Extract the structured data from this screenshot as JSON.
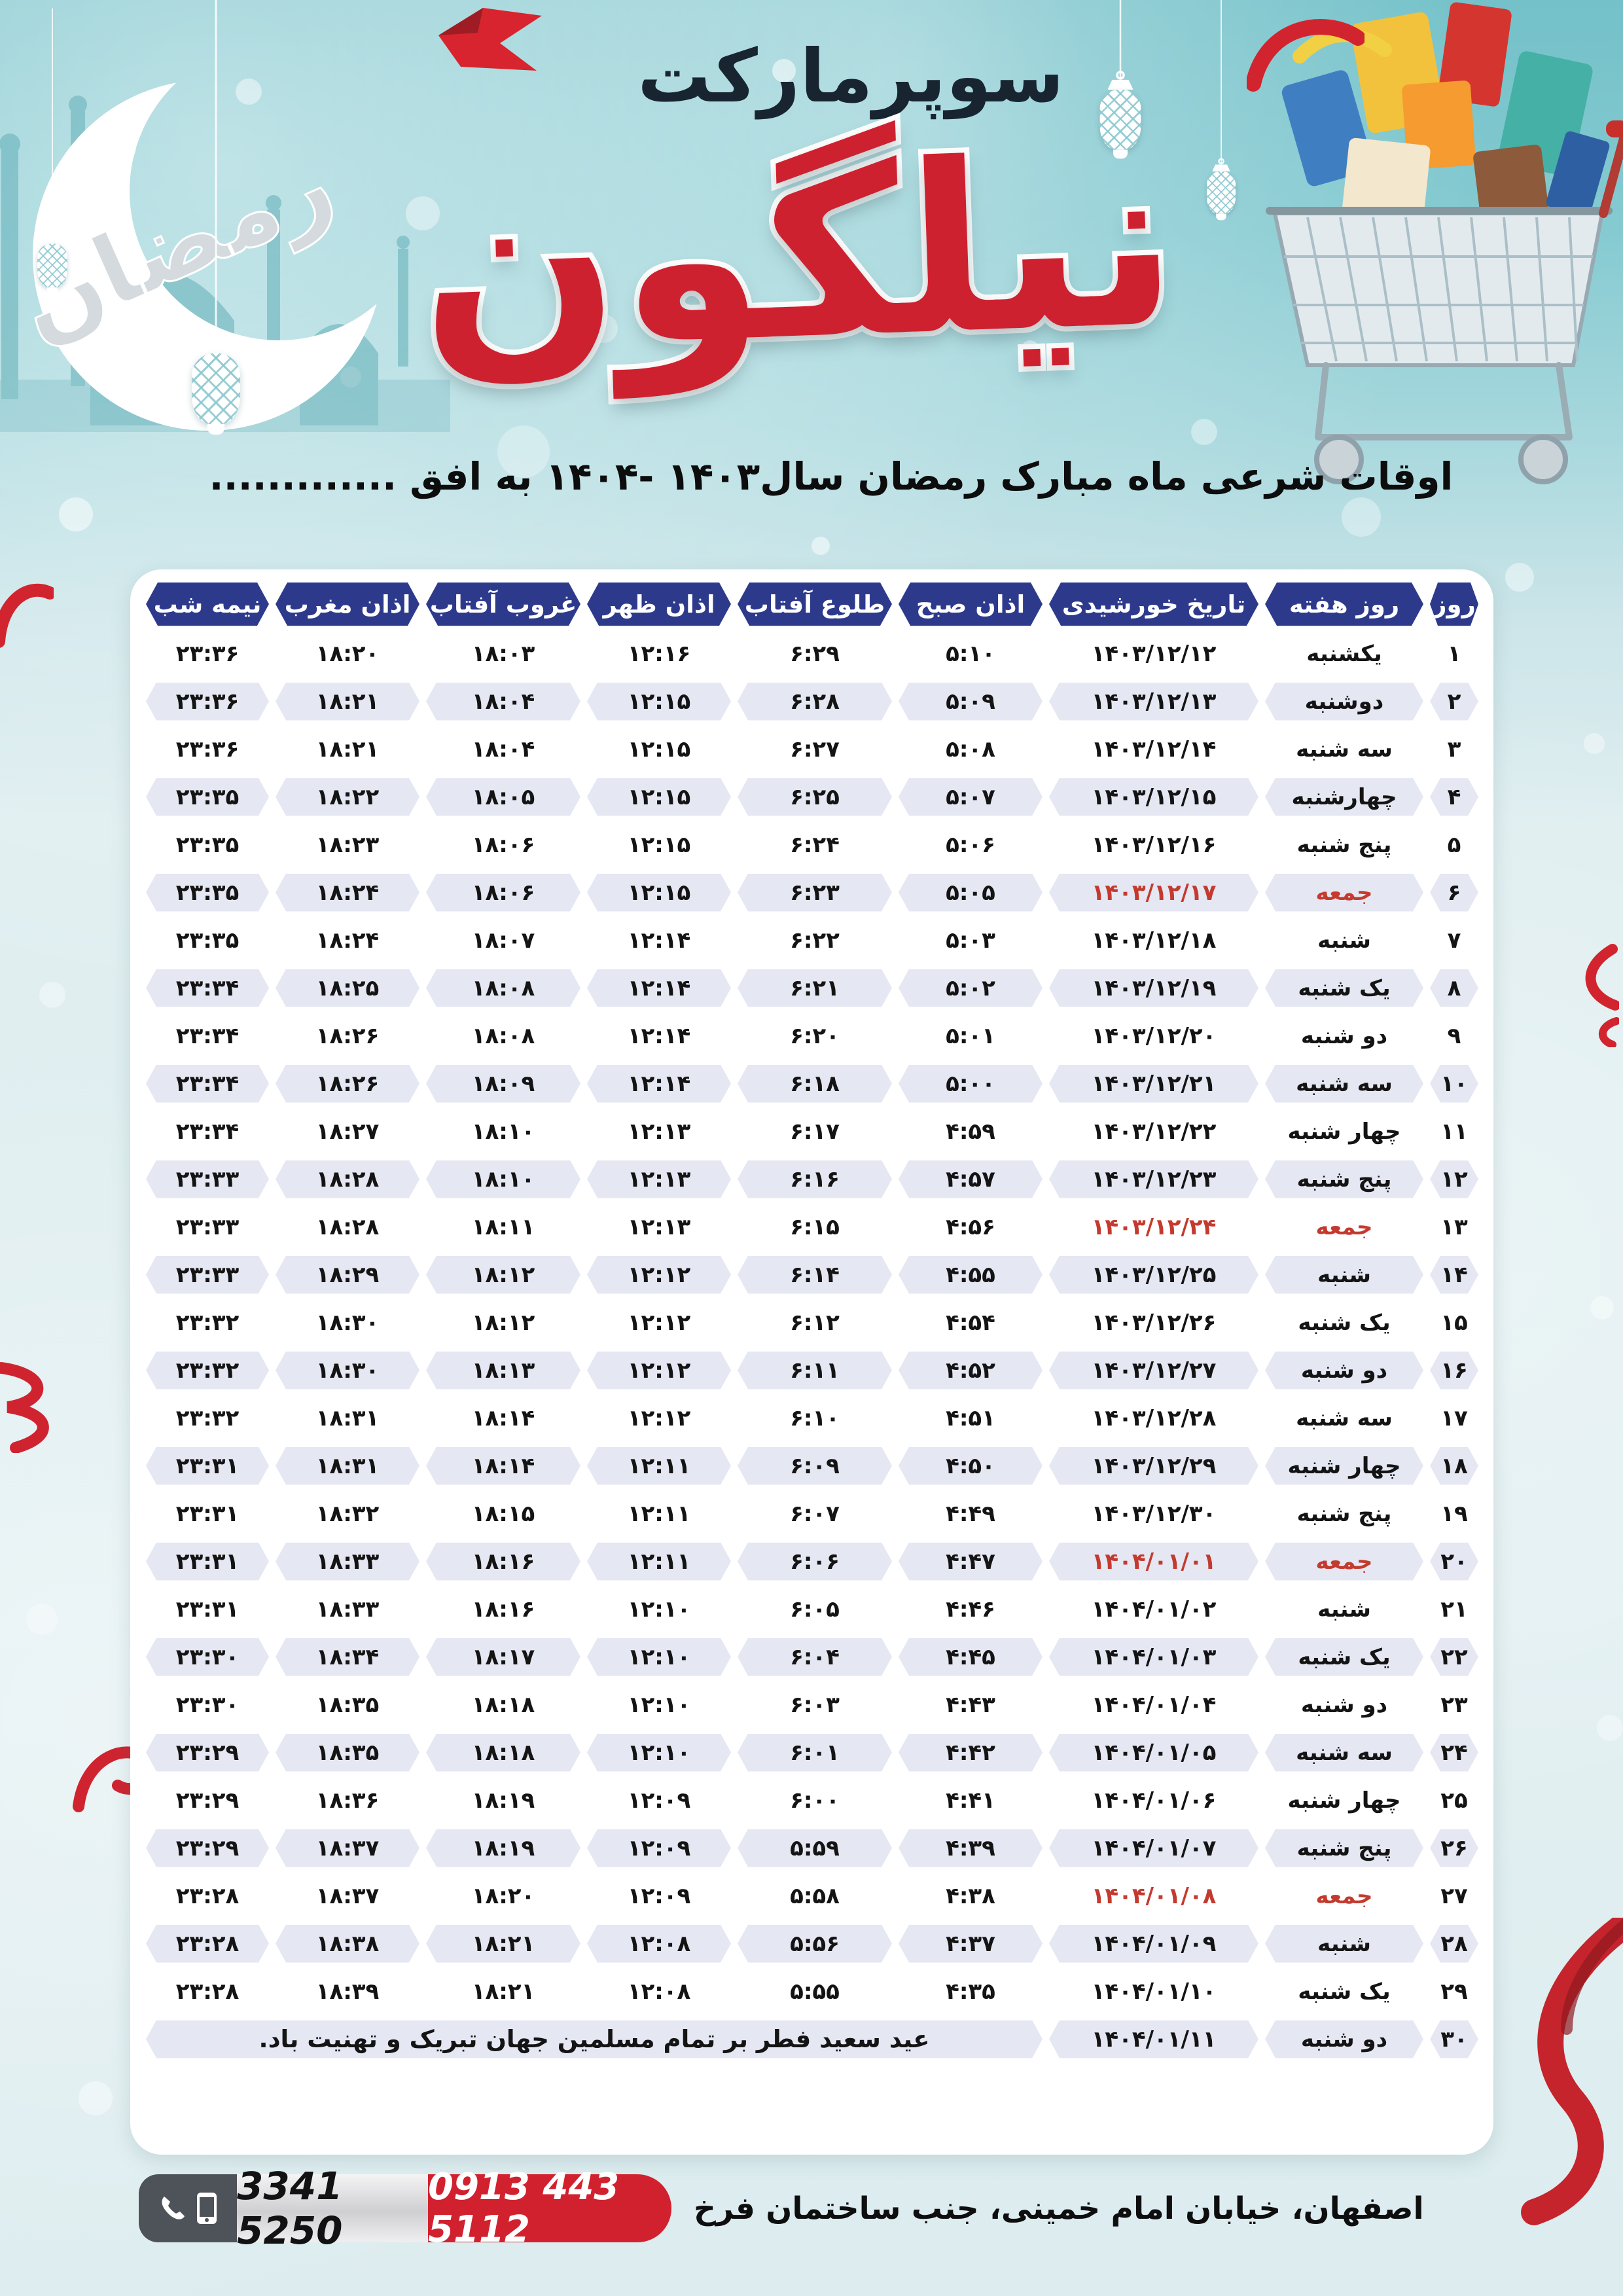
{
  "poster": {
    "supermarket_label": "سوپرمارکت",
    "brand": "نیلگون",
    "crescent_word": "رمضان",
    "subtitle": "اوقات شرعی ماه مبارک رمضان سال۱۴۰۳ -۱۴۰۴ به افق .............",
    "footer": {
      "address": "اصفهان، خیابان امام خمینی، جنب ساختمان فرخ",
      "mobile_number": "0913 443 5112",
      "phone_number": "3341 5250"
    },
    "colors": {
      "header_blue": "#2d3a8c",
      "holiday_red": "#c43a2e",
      "brand_red": "#ce2130",
      "row_shade": "#e5e7f3",
      "top_teal": "#74c1c9"
    }
  },
  "table": {
    "headers": [
      "روز",
      "روز هفته",
      "تاریخ خورشیدی",
      "اذان صبح",
      "طلوع آفتاب",
      "اذان ظهر",
      "غروب آفتاب",
      "اذان مغرب",
      "نیمه شب"
    ],
    "eid_message": "عید سعید فطر بر تمام مسلمین جهان تبریک و تهنیت باد.",
    "rows": [
      {
        "day": "۱",
        "weekday": "یکشنبه",
        "date": "۱۴۰۳/۱۲/۱۲",
        "sobh": "۵:۱۰",
        "tolu": "۶:۲۹",
        "zohr": "۱۲:۱۶",
        "ghorub": "۱۸:۰۳",
        "maghreb": "۱۸:۲۰",
        "shab": "۲۳:۳۶",
        "holiday": false
      },
      {
        "day": "۲",
        "weekday": "دوشنبه",
        "date": "۱۴۰۳/۱۲/۱۳",
        "sobh": "۵:۰۹",
        "tolu": "۶:۲۸",
        "zohr": "۱۲:۱۵",
        "ghorub": "۱۸:۰۴",
        "maghreb": "۱۸:۲۱",
        "shab": "۲۳:۳۶",
        "holiday": false
      },
      {
        "day": "۳",
        "weekday": "سه شنبه",
        "date": "۱۴۰۳/۱۲/۱۴",
        "sobh": "۵:۰۸",
        "tolu": "۶:۲۷",
        "zohr": "۱۲:۱۵",
        "ghorub": "۱۸:۰۴",
        "maghreb": "۱۸:۲۱",
        "shab": "۲۳:۳۶",
        "holiday": false
      },
      {
        "day": "۴",
        "weekday": "چهارشنبه",
        "date": "۱۴۰۳/۱۲/۱۵",
        "sobh": "۵:۰۷",
        "tolu": "۶:۲۵",
        "zohr": "۱۲:۱۵",
        "ghorub": "۱۸:۰۵",
        "maghreb": "۱۸:۲۲",
        "shab": "۲۳:۳۵",
        "holiday": false
      },
      {
        "day": "۵",
        "weekday": "پنج شنبه",
        "date": "۱۴۰۳/۱۲/۱۶",
        "sobh": "۵:۰۶",
        "tolu": "۶:۲۴",
        "zohr": "۱۲:۱۵",
        "ghorub": "۱۸:۰۶",
        "maghreb": "۱۸:۲۳",
        "shab": "۲۳:۳۵",
        "holiday": false
      },
      {
        "day": "۶",
        "weekday": "جمعه",
        "date": "۱۴۰۳/۱۲/۱۷",
        "sobh": "۵:۰۵",
        "tolu": "۶:۲۳",
        "zohr": "۱۲:۱۵",
        "ghorub": "۱۸:۰۶",
        "maghreb": "۱۸:۲۴",
        "shab": "۲۳:۳۵",
        "holiday": true
      },
      {
        "day": "۷",
        "weekday": "شنبه",
        "date": "۱۴۰۳/۱۲/۱۸",
        "sobh": "۵:۰۳",
        "tolu": "۶:۲۲",
        "zohr": "۱۲:۱۴",
        "ghorub": "۱۸:۰۷",
        "maghreb": "۱۸:۲۴",
        "shab": "۲۳:۳۵",
        "holiday": false
      },
      {
        "day": "۸",
        "weekday": "یک شنبه",
        "date": "۱۴۰۳/۱۲/۱۹",
        "sobh": "۵:۰۲",
        "tolu": "۶:۲۱",
        "zohr": "۱۲:۱۴",
        "ghorub": "۱۸:۰۸",
        "maghreb": "۱۸:۲۵",
        "shab": "۲۳:۳۴",
        "holiday": false
      },
      {
        "day": "۹",
        "weekday": "دو شنبه",
        "date": "۱۴۰۳/۱۲/۲۰",
        "sobh": "۵:۰۱",
        "tolu": "۶:۲۰",
        "zohr": "۱۲:۱۴",
        "ghorub": "۱۸:۰۸",
        "maghreb": "۱۸:۲۶",
        "shab": "۲۳:۳۴",
        "holiday": false
      },
      {
        "day": "۱۰",
        "weekday": "سه شنبه",
        "date": "۱۴۰۳/۱۲/۲۱",
        "sobh": "۵:۰۰",
        "tolu": "۶:۱۸",
        "zohr": "۱۲:۱۴",
        "ghorub": "۱۸:۰۹",
        "maghreb": "۱۸:۲۶",
        "shab": "۲۳:۳۴",
        "holiday": false
      },
      {
        "day": "۱۱",
        "weekday": "چهار شنبه",
        "date": "۱۴۰۳/۱۲/۲۲",
        "sobh": "۴:۵۹",
        "tolu": "۶:۱۷",
        "zohr": "۱۲:۱۳",
        "ghorub": "۱۸:۱۰",
        "maghreb": "۱۸:۲۷",
        "shab": "۲۳:۳۴",
        "holiday": false
      },
      {
        "day": "۱۲",
        "weekday": "پنج شنبه",
        "date": "۱۴۰۳/۱۲/۲۳",
        "sobh": "۴:۵۷",
        "tolu": "۶:۱۶",
        "zohr": "۱۲:۱۳",
        "ghorub": "۱۸:۱۰",
        "maghreb": "۱۸:۲۸",
        "shab": "۲۳:۳۳",
        "holiday": false
      },
      {
        "day": "۱۳",
        "weekday": "جمعه",
        "date": "۱۴۰۳/۱۲/۲۴",
        "sobh": "۴:۵۶",
        "tolu": "۶:۱۵",
        "zohr": "۱۲:۱۳",
        "ghorub": "۱۸:۱۱",
        "maghreb": "۱۸:۲۸",
        "shab": "۲۳:۳۳",
        "holiday": true
      },
      {
        "day": "۱۴",
        "weekday": "شنبه",
        "date": "۱۴۰۳/۱۲/۲۵",
        "sobh": "۴:۵۵",
        "tolu": "۶:۱۴",
        "zohr": "۱۲:۱۲",
        "ghorub": "۱۸:۱۲",
        "maghreb": "۱۸:۲۹",
        "shab": "۲۳:۳۳",
        "holiday": false
      },
      {
        "day": "۱۵",
        "weekday": "یک شنبه",
        "date": "۱۴۰۳/۱۲/۲۶",
        "sobh": "۴:۵۴",
        "tolu": "۶:۱۲",
        "zohr": "۱۲:۱۲",
        "ghorub": "۱۸:۱۲",
        "maghreb": "۱۸:۳۰",
        "shab": "۲۳:۳۲",
        "holiday": false
      },
      {
        "day": "۱۶",
        "weekday": "دو شنبه",
        "date": "۱۴۰۳/۱۲/۲۷",
        "sobh": "۴:۵۲",
        "tolu": "۶:۱۱",
        "zohr": "۱۲:۱۲",
        "ghorub": "۱۸:۱۳",
        "maghreb": "۱۸:۳۰",
        "shab": "۲۳:۳۲",
        "holiday": false
      },
      {
        "day": "۱۷",
        "weekday": "سه شنبه",
        "date": "۱۴۰۳/۱۲/۲۸",
        "sobh": "۴:۵۱",
        "tolu": "۶:۱۰",
        "zohr": "۱۲:۱۲",
        "ghorub": "۱۸:۱۴",
        "maghreb": "۱۸:۳۱",
        "shab": "۲۳:۳۲",
        "holiday": false
      },
      {
        "day": "۱۸",
        "weekday": "چهار شنبه",
        "date": "۱۴۰۳/۱۲/۲۹",
        "sobh": "۴:۵۰",
        "tolu": "۶:۰۹",
        "zohr": "۱۲:۱۱",
        "ghorub": "۱۸:۱۴",
        "maghreb": "۱۸:۳۱",
        "shab": "۲۳:۳۱",
        "holiday": false
      },
      {
        "day": "۱۹",
        "weekday": "پنج شنبه",
        "date": "۱۴۰۳/۱۲/۳۰",
        "sobh": "۴:۴۹",
        "tolu": "۶:۰۷",
        "zohr": "۱۲:۱۱",
        "ghorub": "۱۸:۱۵",
        "maghreb": "۱۸:۳۲",
        "shab": "۲۳:۳۱",
        "holiday": false
      },
      {
        "day": "۲۰",
        "weekday": "جمعه",
        "date": "۱۴۰۴/۰۱/۰۱",
        "sobh": "۴:۴۷",
        "tolu": "۶:۰۶",
        "zohr": "۱۲:۱۱",
        "ghorub": "۱۸:۱۶",
        "maghreb": "۱۸:۳۳",
        "shab": "۲۳:۳۱",
        "holiday": true
      },
      {
        "day": "۲۱",
        "weekday": "شنبه",
        "date": "۱۴۰۴/۰۱/۰۲",
        "sobh": "۴:۴۶",
        "tolu": "۶:۰۵",
        "zohr": "۱۲:۱۰",
        "ghorub": "۱۸:۱۶",
        "maghreb": "۱۸:۳۳",
        "shab": "۲۳:۳۱",
        "holiday": false
      },
      {
        "day": "۲۲",
        "weekday": "یک شنبه",
        "date": "۱۴۰۴/۰۱/۰۳",
        "sobh": "۴:۴۵",
        "tolu": "۶:۰۴",
        "zohr": "۱۲:۱۰",
        "ghorub": "۱۸:۱۷",
        "maghreb": "۱۸:۳۴",
        "shab": "۲۳:۳۰",
        "holiday": false
      },
      {
        "day": "۲۳",
        "weekday": "دو شنبه",
        "date": "۱۴۰۴/۰۱/۰۴",
        "sobh": "۴:۴۳",
        "tolu": "۶:۰۳",
        "zohr": "۱۲:۱۰",
        "ghorub": "۱۸:۱۸",
        "maghreb": "۱۸:۳۵",
        "shab": "۲۳:۳۰",
        "holiday": false
      },
      {
        "day": "۲۴",
        "weekday": "سه شنبه",
        "date": "۱۴۰۴/۰۱/۰۵",
        "sobh": "۴:۴۲",
        "tolu": "۶:۰۱",
        "zohr": "۱۲:۱۰",
        "ghorub": "۱۸:۱۸",
        "maghreb": "۱۸:۳۵",
        "shab": "۲۳:۲۹",
        "holiday": false
      },
      {
        "day": "۲۵",
        "weekday": "چهار شنبه",
        "date": "۱۴۰۴/۰۱/۰۶",
        "sobh": "۴:۴۱",
        "tolu": "۶:۰۰",
        "zohr": "۱۲:۰۹",
        "ghorub": "۱۸:۱۹",
        "maghreb": "۱۸:۳۶",
        "shab": "۲۳:۲۹",
        "holiday": false
      },
      {
        "day": "۲۶",
        "weekday": "پنج شنبه",
        "date": "۱۴۰۴/۰۱/۰۷",
        "sobh": "۴:۳۹",
        "tolu": "۵:۵۹",
        "zohr": "۱۲:۰۹",
        "ghorub": "۱۸:۱۹",
        "maghreb": "۱۸:۳۷",
        "shab": "۲۳:۲۹",
        "holiday": false
      },
      {
        "day": "۲۷",
        "weekday": "جمعه",
        "date": "۱۴۰۴/۰۱/۰۸",
        "sobh": "۴:۳۸",
        "tolu": "۵:۵۸",
        "zohr": "۱۲:۰۹",
        "ghorub": "۱۸:۲۰",
        "maghreb": "۱۸:۳۷",
        "shab": "۲۳:۲۸",
        "holiday": true
      },
      {
        "day": "۲۸",
        "weekday": "شنبه",
        "date": "۱۴۰۴/۰۱/۰۹",
        "sobh": "۴:۳۷",
        "tolu": "۵:۵۶",
        "zohr": "۱۲:۰۸",
        "ghorub": "۱۸:۲۱",
        "maghreb": "۱۸:۳۸",
        "shab": "۲۳:۲۸",
        "holiday": false
      },
      {
        "day": "۲۹",
        "weekday": "یک شنبه",
        "date": "۱۴۰۴/۰۱/۱۰",
        "sobh": "۴:۳۵",
        "tolu": "۵:۵۵",
        "zohr": "۱۲:۰۸",
        "ghorub": "۱۸:۲۱",
        "maghreb": "۱۸:۳۹",
        "shab": "۲۳:۲۸",
        "holiday": false
      },
      {
        "day": "۳۰",
        "weekday": "دو شنبه",
        "date": "۱۴۰۴/۰۱/۱۱",
        "eid": true,
        "holiday": false
      }
    ]
  }
}
